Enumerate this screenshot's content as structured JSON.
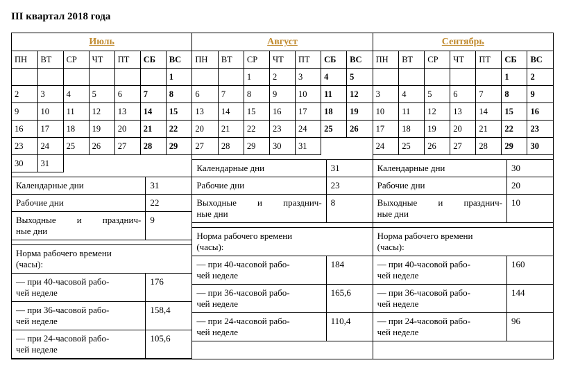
{
  "title": "III квартал 2018 года",
  "weekday_headers": [
    "ПН",
    "ВТ",
    "СР",
    "ЧТ",
    "ПТ",
    "СБ",
    "ВС"
  ],
  "months": [
    {
      "name": "Июль",
      "weeks": [
        [
          "",
          "",
          "",
          "",
          "",
          "",
          "1"
        ],
        [
          "2",
          "3",
          "4",
          "5",
          "6",
          "7",
          "8"
        ],
        [
          "9",
          "10",
          "11",
          "12",
          "13",
          "14",
          "15"
        ],
        [
          "16",
          "17",
          "18",
          "19",
          "20",
          "21",
          "22"
        ],
        [
          "23",
          "24",
          "25",
          "26",
          "27",
          "28",
          "29"
        ],
        [
          "30",
          "31",
          "",
          "",
          "",
          "",
          ""
        ]
      ],
      "stats": {
        "calendar_days": "31",
        "work_days": "22",
        "weekend_days": "9",
        "h40": "176",
        "h36": "158,4",
        "h24": "105,6"
      }
    },
    {
      "name": "Август",
      "weeks": [
        [
          "",
          "",
          "1",
          "2",
          "3",
          "4",
          "5"
        ],
        [
          "6",
          "7",
          "8",
          "9",
          "10",
          "11",
          "12"
        ],
        [
          "13",
          "14",
          "15",
          "16",
          "17",
          "18",
          "19"
        ],
        [
          "20",
          "21",
          "22",
          "23",
          "24",
          "25",
          "26"
        ],
        [
          "27",
          "28",
          "29",
          "30",
          "31",
          "",
          ""
        ],
        [
          "",
          "",
          "",
          "",
          "",
          "",
          ""
        ]
      ],
      "stats": {
        "calendar_days": "31",
        "work_days": "23",
        "weekend_days": "8",
        "h40": "184",
        "h36": "165,6",
        "h24": "110,4"
      }
    },
    {
      "name": "Сентябрь",
      "weeks": [
        [
          "",
          "",
          "",
          "",
          "",
          "1",
          "2"
        ],
        [
          "3",
          "4",
          "5",
          "6",
          "7",
          "8",
          "9"
        ],
        [
          "10",
          "11",
          "12",
          "13",
          "14",
          "15",
          "16"
        ],
        [
          "17",
          "18",
          "19",
          "20",
          "21",
          "22",
          "23"
        ],
        [
          "24",
          "25",
          "26",
          "27",
          "28",
          "29",
          "30"
        ],
        [
          "",
          "",
          "",
          "",
          "",
          "",
          ""
        ]
      ],
      "stats": {
        "calendar_days": "30",
        "work_days": "20",
        "weekend_days": "10",
        "h40": "160",
        "h36": "144",
        "h24": "96"
      }
    }
  ],
  "labels": {
    "calendar_days": "Календарные дни",
    "work_days": "Рабочие дни",
    "weekend_days_l1": "Выходные и празднич-",
    "weekend_days_l2": "ные дни",
    "norm_l1": "Норма рабочего времени",
    "norm_l2": "(часы):",
    "h40_l1": "— при 40-часовой рабо-",
    "h40_l2": "чей неделе",
    "h36_l1": "— при 36-часовой рабо-",
    "h36_l2": "чей неделе",
    "h24_l1": "— при 24-часовой рабо-",
    "h24_l2": "чей неделе"
  },
  "colors": {
    "link": "#c08a2e",
    "border": "#000000",
    "background": "#ffffff"
  }
}
